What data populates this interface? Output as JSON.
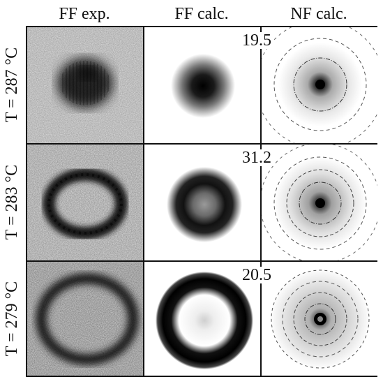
{
  "columns": [
    "FF exp.",
    "FF calc.",
    "NF calc."
  ],
  "rows": [
    {
      "label": "T = 287 °C",
      "value": "19.5"
    },
    {
      "label": "T = 283 °C",
      "value": "31.2"
    },
    {
      "label": "T = 279 °C",
      "value": "20.5"
    }
  ],
  "colors": {
    "ink": "#111111",
    "background": "#ffffff"
  }
}
